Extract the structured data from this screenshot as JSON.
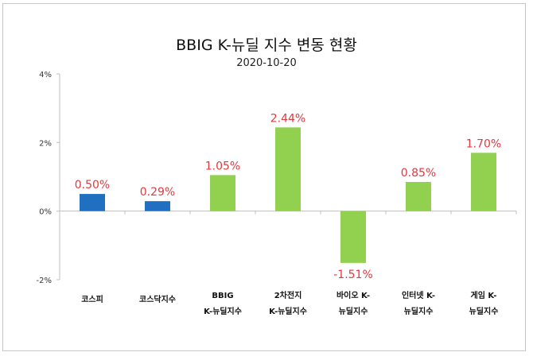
{
  "chart_data": {
    "type": "bar",
    "title": "BBIG K-뉴딜 지수 변동 현황",
    "subtitle": "2020-10-20",
    "categories": [
      [
        "코스피"
      ],
      [
        "코스닥지수"
      ],
      [
        "BBIG",
        "K-뉴딜지수"
      ],
      [
        "2차전지",
        "K-뉴딜지수"
      ],
      [
        "바이오 K-",
        "뉴딜지수"
      ],
      [
        "인터넷 K-",
        "뉴딜지수"
      ],
      [
        "게임 K-",
        "뉴딜지수"
      ]
    ],
    "values": [
      0.5,
      0.29,
      1.05,
      2.44,
      -1.51,
      0.85,
      1.7
    ],
    "data_labels": [
      "0.50%",
      "0.29%",
      "1.05%",
      "2.44%",
      "-1.51%",
      "0.85%",
      "1.70%"
    ],
    "bar_colors": [
      "#1f70c1",
      "#1f70c1",
      "#92d050",
      "#92d050",
      "#92d050",
      "#92d050",
      "#92d050"
    ],
    "label_color": "#e0393e",
    "ylim": [
      -2,
      4
    ],
    "yticks": [
      4,
      2,
      0,
      -2
    ],
    "ytick_labels": [
      "4%",
      "2%",
      "0%",
      "-2%"
    ],
    "xlabel": "",
    "ylabel": "",
    "grid": false,
    "legend": "none"
  }
}
